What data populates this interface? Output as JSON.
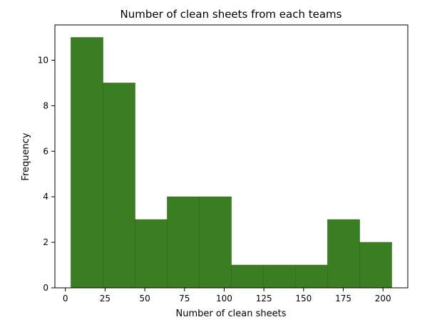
{
  "chart_data": {
    "type": "bar",
    "title": "Number of clean sheets from each teams",
    "xlabel": "Number of clean sheets",
    "ylabel": "Frequency",
    "bins": [
      {
        "start": 3.5,
        "end": 23.7,
        "count": 11
      },
      {
        "start": 23.7,
        "end": 43.9,
        "count": 9
      },
      {
        "start": 43.9,
        "end": 64.1,
        "count": 3
      },
      {
        "start": 64.1,
        "end": 84.3,
        "count": 4
      },
      {
        "start": 84.3,
        "end": 104.5,
        "count": 4
      },
      {
        "start": 104.5,
        "end": 124.7,
        "count": 1
      },
      {
        "start": 124.7,
        "end": 144.9,
        "count": 1
      },
      {
        "start": 144.9,
        "end": 165.1,
        "count": 1
      },
      {
        "start": 165.1,
        "end": 185.3,
        "count": 3
      },
      {
        "start": 185.3,
        "end": 205.5,
        "count": 2
      }
    ],
    "xlim": [
      -6.6,
      215.6
    ],
    "ylim": [
      0,
      11.55
    ],
    "xticks": [
      0,
      25,
      50,
      75,
      100,
      125,
      150,
      175,
      200
    ],
    "yticks": [
      0,
      2,
      4,
      6,
      8,
      10
    ],
    "bar_color": "#3a7d22",
    "grid": false
  }
}
